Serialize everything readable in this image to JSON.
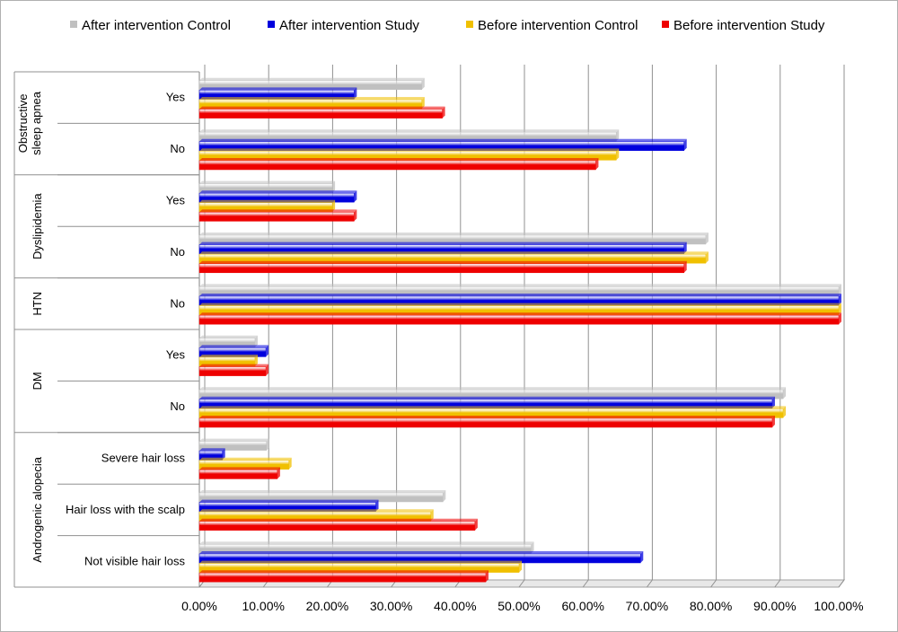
{
  "chart_data": {
    "type": "bar",
    "orientation": "horizontal",
    "title": "",
    "xlabel": "",
    "ylabel": "",
    "xlim": [
      0,
      1
    ],
    "x_ticks": [
      "0.00%",
      "10.00%",
      "20.00%",
      "30.00%",
      "40.00%",
      "50.00%",
      "60.00%",
      "70.00%",
      "80.00%",
      "90.00%",
      "100.00%"
    ],
    "legend_position": "top",
    "grid": true,
    "categories": [
      {
        "group": "Obstructive sleep apnea",
        "label": "Yes"
      },
      {
        "group": "Obstructive sleep apnea",
        "label": "No"
      },
      {
        "group": "Dyslipidemia",
        "label": "Yes"
      },
      {
        "group": "Dyslipidemia",
        "label": "No"
      },
      {
        "group": "HTN",
        "label": "No"
      },
      {
        "group": "DM",
        "label": "Yes"
      },
      {
        "group": "DM",
        "label": "No"
      },
      {
        "group": "Androgenic alopecia",
        "label": "Severe hair loss"
      },
      {
        "group": "Androgenic alopecia",
        "label": "Hair loss with the scalp"
      },
      {
        "group": "Androgenic alopecia",
        "label": "Not visible hair loss"
      }
    ],
    "groups": [
      {
        "name": "Obstructive sleep apnea",
        "lines": [
          "Obstructive",
          "sleep apnea"
        ]
      },
      {
        "name": "Dyslipidemia",
        "lines": [
          "Dyslipidemia"
        ]
      },
      {
        "name": "HTN",
        "lines": [
          "HTN"
        ]
      },
      {
        "name": "DM",
        "lines": [
          "DM"
        ]
      },
      {
        "name": "Androgenic alopecia",
        "lines": [
          "Androgenic alopecia"
        ]
      }
    ],
    "series": [
      {
        "name": "After  intervention Control",
        "color": "#c0c0c0",
        "values": [
          0.348,
          0.652,
          0.208,
          0.792,
          1.0,
          0.087,
          0.913,
          0.105,
          0.381,
          0.519
        ]
      },
      {
        "name": "After  intervention Study",
        "color": "#0000dd",
        "values": [
          0.242,
          0.758,
          0.242,
          0.758,
          1.0,
          0.104,
          0.896,
          0.036,
          0.276,
          0.69
        ]
      },
      {
        "name": "Before  intervention Control",
        "color": "#f0c000",
        "values": [
          0.348,
          0.652,
          0.208,
          0.792,
          1.0,
          0.087,
          0.913,
          0.14,
          0.362,
          0.5
        ]
      },
      {
        "name": "Before  intervention Study",
        "color": "#ee0000",
        "values": [
          0.38,
          0.62,
          0.242,
          0.758,
          1.0,
          0.104,
          0.896,
          0.122,
          0.431,
          0.448
        ]
      }
    ]
  }
}
